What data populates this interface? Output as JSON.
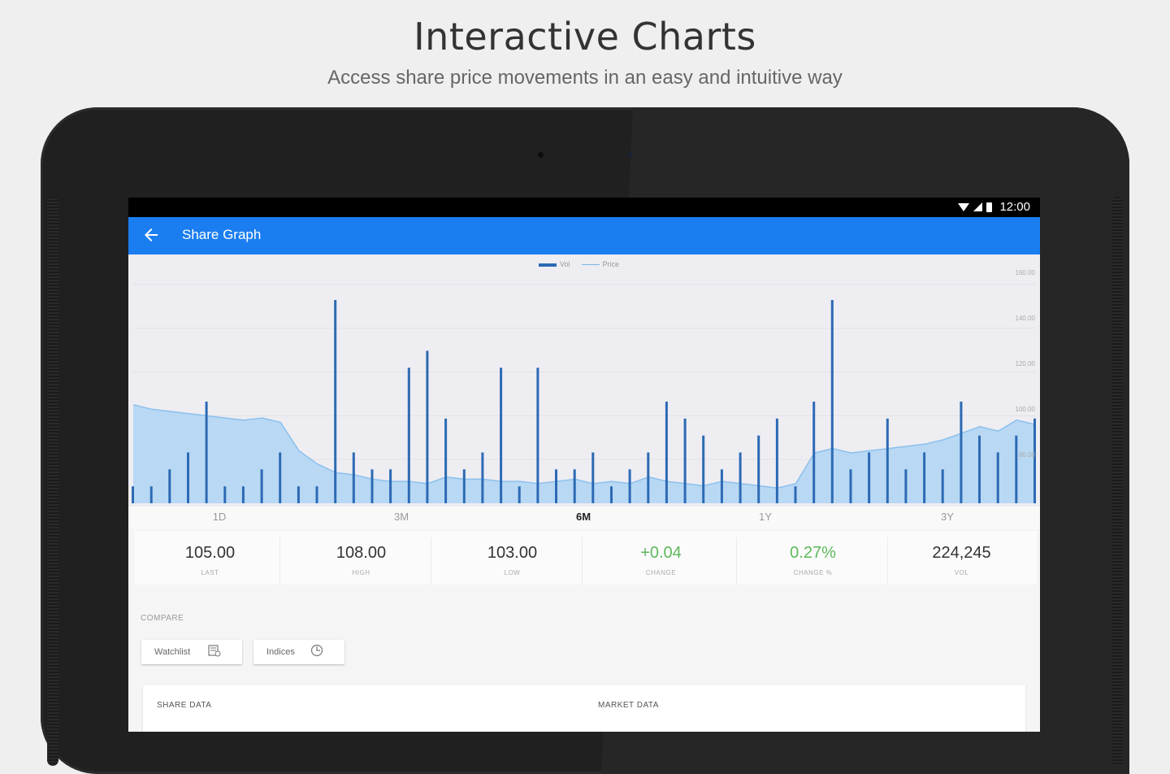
{
  "hero": {
    "title": "Interactive Charts",
    "subtitle": "Access share price movements in an easy and intuitive way"
  },
  "statusbar": {
    "time": "12:00"
  },
  "appbar": {
    "title": "Share Graph"
  },
  "legend": {
    "vol_label": "Vol",
    "price_label": "Price"
  },
  "y_ticks": [
    "160.00",
    "140.00",
    "120.00",
    "100.00",
    "80.00"
  ],
  "range_tabs": [
    {
      "label": "1D",
      "active": false
    },
    {
      "label": "3M",
      "active": false
    },
    {
      "label": "6M",
      "active": true
    },
    {
      "label": "1Y",
      "active": false
    },
    {
      "label": "3Y",
      "active": false
    }
  ],
  "stats": [
    {
      "value": "105.00",
      "label": "LAST",
      "positive": false
    },
    {
      "value": "108.00",
      "label": "HIGH",
      "positive": false
    },
    {
      "value": "103.00",
      "label": "LOW",
      "positive": false
    },
    {
      "value": "+0.04",
      "label": "CHANGE",
      "positive": true
    },
    {
      "value": "0.27%",
      "label": "CHANGE %",
      "positive": true
    },
    {
      "value": "224,245",
      "label": "VOL",
      "positive": false
    }
  ],
  "compare": {
    "label": "COMPARE",
    "watchlist_label": "Watchlist",
    "indices_label": "Indices"
  },
  "data_card": {
    "share_data_label": "SHARE DATA",
    "market_data_label": "MARKET DATA"
  },
  "colors": {
    "appbar": "#1a7ef0",
    "price_fill": "#b8d8f4",
    "volume_bar": "#2c6ab4",
    "positive": "#5cb85c"
  },
  "chart_data": {
    "type": "area",
    "series": [
      {
        "name": "Price",
        "values": [
          105,
          103,
          102,
          101,
          100,
          99,
          98,
          99,
          97,
          84,
          78,
          74,
          73,
          71,
          70,
          70,
          69,
          72,
          71,
          71,
          70,
          70,
          69,
          70,
          71,
          69,
          70,
          69,
          72,
          70,
          69,
          68,
          70,
          69,
          68,
          67,
          69,
          83,
          85,
          83,
          84,
          85,
          86,
          87,
          89,
          92,
          95,
          93,
          98,
          96
        ]
      },
      {
        "name": "Vol",
        "values": [
          1,
          1,
          2,
          3,
          6,
          1,
          1,
          2,
          3,
          1,
          1,
          12,
          3,
          2,
          2,
          8,
          9,
          5,
          2,
          3,
          8,
          1,
          8,
          2,
          2,
          3,
          1,
          2,
          3,
          6,
          5,
          4,
          2,
          3,
          4,
          5,
          1,
          6,
          12,
          2,
          3,
          5,
          2,
          3,
          2,
          6,
          4,
          3,
          4,
          5
        ]
      }
    ],
    "ylim": [
      60,
      170
    ],
    "y_ticks": [
      160,
      140,
      120,
      100,
      80
    ],
    "x_ticks": [
      "1D",
      "3M",
      "6M",
      "1Y",
      "3Y"
    ]
  }
}
